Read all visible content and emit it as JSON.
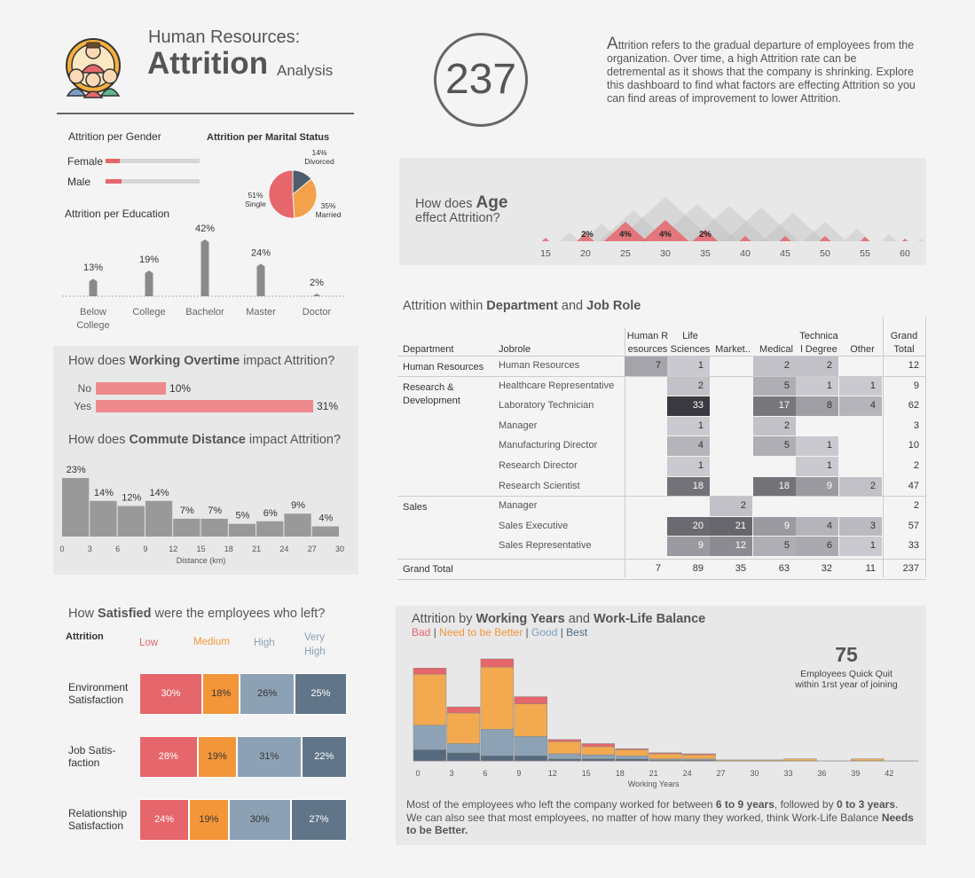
{
  "header": {
    "line1": "Human Resources:",
    "title": "Attrition",
    "analysis": "Analysis",
    "logo_icon": "employees-group-icon",
    "total": "237",
    "description_first_letter": "A",
    "description": "ttrition refers to the gradual departure of employees from the organization. Over time, a high Attrition rate can be detremental as it shows that the company is shrinking. Explore this dashboard to find what factors are effecting Attrition so you can find areas of improvement to lower Attrition."
  },
  "gender": {
    "title": "Attrition per Gender",
    "items": [
      {
        "label": "Female",
        "value": 0.15
      },
      {
        "label": "Male",
        "value": 0.17
      }
    ]
  },
  "marital": {
    "title": "Attrition per Marital Status",
    "slices": [
      {
        "label": "Divorced",
        "pct_label": "14%",
        "value": 14,
        "color": "#4e5d6c"
      },
      {
        "label": "Married",
        "pct_label": "35%",
        "value": 35,
        "color": "#f3a24b"
      },
      {
        "label": "Single",
        "pct_label": "51%",
        "value": 51,
        "color": "#e5666b"
      }
    ]
  },
  "education": {
    "title": "Attrition per Education",
    "bars": [
      {
        "label": "Below College",
        "line1": "Below",
        "line2": "College",
        "value": 13,
        "pct": "13%"
      },
      {
        "label": "College",
        "line1": "College",
        "line2": "",
        "value": 19,
        "pct": "19%"
      },
      {
        "label": "Bachelor",
        "line1": "Bachelor",
        "line2": "",
        "value": 42,
        "pct": "42%"
      },
      {
        "label": "Master",
        "line1": "Master",
        "line2": "",
        "value": 24,
        "pct": "24%"
      },
      {
        "label": "Doctor",
        "line1": "Doctor",
        "line2": "",
        "value": 2,
        "pct": "2%"
      }
    ]
  },
  "overtime": {
    "title_pre": "How does ",
    "title_bold": "Working Overtime",
    "title_post": " impact Attrition?",
    "items": [
      {
        "label": "No",
        "value": 10,
        "pct": "10%"
      },
      {
        "label": "Yes",
        "value": 31,
        "pct": "31%"
      }
    ]
  },
  "commute": {
    "title_pre": "How does ",
    "title_bold": "Commute Distance",
    "title_post": " impact Attrition?",
    "xlabel": "Distance (km)",
    "ticks": [
      "0",
      "3",
      "6",
      "9",
      "12",
      "15",
      "18",
      "21",
      "24",
      "27",
      "30"
    ],
    "bars": [
      23,
      14,
      12,
      14,
      7,
      7,
      5,
      6,
      9,
      4
    ],
    "labels": [
      "23%",
      "14%",
      "12%",
      "14%",
      "7%",
      "7%",
      "5%",
      "6%",
      "9%",
      "4%"
    ]
  },
  "satisfaction": {
    "title_pre": "How ",
    "title_bold": "Satisfied",
    "title_post": " were the employees who left?",
    "col_attrition": "Attrition",
    "levels": [
      {
        "label": "Low",
        "color": "#e5666b"
      },
      {
        "label": "Medium",
        "color": "#f3963a"
      },
      {
        "label": "High",
        "color": "#8da1b5"
      },
      {
        "label": "Very High",
        "line1": "Very",
        "line2": "High",
        "color": "#617589"
      }
    ],
    "rows": [
      {
        "line1": "Environment",
        "line2": "Satisfaction",
        "values": [
          30,
          18,
          26,
          25
        ],
        "labels": [
          "30%",
          "18%",
          "26%",
          "25%"
        ]
      },
      {
        "line1": "Job Satis-",
        "line2": "faction",
        "values": [
          28,
          19,
          31,
          22
        ],
        "labels": [
          "28%",
          "19%",
          "31%",
          "22%"
        ]
      },
      {
        "line1": "Relationship",
        "line2": "Satisfaction",
        "values": [
          24,
          19,
          30,
          27
        ],
        "labels": [
          "24%",
          "19%",
          "30%",
          "27%"
        ]
      }
    ]
  },
  "age": {
    "title_pre": "How does ",
    "title_bold": "Age",
    "title_line2": "effect Attrition?",
    "ticks": [
      "15",
      "20",
      "25",
      "30",
      "35",
      "40",
      "45",
      "50",
      "55",
      "60"
    ],
    "labels": [
      {
        "x": 20,
        "text": "2%"
      },
      {
        "x": 25,
        "text": "4%"
      },
      {
        "x": 30,
        "text": "4%"
      },
      {
        "x": 35,
        "text": "2%"
      }
    ]
  },
  "heatmap": {
    "title_pre": "Attrition within ",
    "title_bold1": "Department",
    "title_mid": " and ",
    "title_bold2": "Job Role",
    "header_dept": "Department",
    "header_role": "Jobrole",
    "columns": [
      {
        "line1": "Human R",
        "line2": "esources"
      },
      {
        "line1": "Life",
        "line2": "Sciences"
      },
      {
        "line1": "",
        "line2": "Market.."
      },
      {
        "line1": "",
        "line2": "Medical"
      },
      {
        "line1": "Technica",
        "line2": "l Degree"
      },
      {
        "line1": "",
        "line2": "Other"
      }
    ],
    "grand_total_col": {
      "line1": "Grand",
      "line2": "Total"
    },
    "departments": [
      {
        "line1": "Human Resources",
        "line2": "",
        "start": 0
      },
      {
        "line1": "Research &",
        "line2": "Development",
        "start": 1
      },
      {
        "line1": "Sales",
        "line2": "",
        "start": 7
      }
    ],
    "rows": [
      {
        "role": "Human Resources",
        "values": [
          7,
          1,
          null,
          2,
          2,
          null
        ],
        "total": "12"
      },
      {
        "role": "Healthcare Representative",
        "values": [
          null,
          2,
          null,
          5,
          1,
          1
        ],
        "total": "9"
      },
      {
        "role": "Laboratory Technician",
        "values": [
          null,
          33,
          null,
          17,
          8,
          4
        ],
        "total": "62"
      },
      {
        "role": "Manager",
        "values": [
          null,
          1,
          null,
          2,
          null,
          null
        ],
        "total": "3"
      },
      {
        "role": "Manufacturing Director",
        "values": [
          null,
          4,
          null,
          5,
          1,
          null
        ],
        "total": "10"
      },
      {
        "role": "Research Director",
        "values": [
          null,
          1,
          null,
          null,
          1,
          null
        ],
        "total": "2"
      },
      {
        "role": "Research Scientist",
        "values": [
          null,
          18,
          null,
          18,
          9,
          2
        ],
        "total": "47"
      },
      {
        "role": "Manager",
        "values": [
          null,
          null,
          2,
          null,
          null,
          null
        ],
        "total": "2"
      },
      {
        "role": "Sales Executive",
        "values": [
          null,
          20,
          21,
          9,
          4,
          3
        ],
        "total": "57"
      },
      {
        "role": "Sales Representative",
        "values": [
          null,
          9,
          12,
          5,
          6,
          1
        ],
        "total": "33"
      }
    ],
    "grand_total_label": "Grand Total",
    "grand_totals": [
      "7",
      "89",
      "35",
      "63",
      "32",
      "11",
      "237"
    ]
  },
  "years": {
    "title_pre": "Attrition by ",
    "title_bold1": "Working Years",
    "title_mid": " and ",
    "title_bold2": "Work-Life Balance",
    "legend": [
      {
        "label": "Bad",
        "color": "#e5666b"
      },
      {
        "label": "Need to be Better",
        "color": "#f3963a"
      },
      {
        "label": "Good",
        "color": "#7aa0c8"
      },
      {
        "label": "Best",
        "color": "#4e6a87"
      }
    ],
    "quick_quit_value": "75",
    "quick_quit_line1": "Employees Quick Quit",
    "quick_quit_line2": "within 1rst year of joining",
    "xlabel": "Working Years",
    "ticks": [
      "0",
      "3",
      "6",
      "9",
      "12",
      "15",
      "18",
      "21",
      "24",
      "27",
      "30",
      "33",
      "36",
      "39",
      "42"
    ],
    "bin_width": 3,
    "bins": [
      {
        "start": 0,
        "best": 11,
        "good": 24,
        "better": 50,
        "bad": 6
      },
      {
        "start": 3,
        "best": 8,
        "good": 9,
        "better": 30,
        "bad": 6
      },
      {
        "start": 6,
        "best": 5,
        "good": 26,
        "better": 61,
        "bad": 8
      },
      {
        "start": 9,
        "best": 5,
        "good": 19,
        "better": 32,
        "bad": 7
      },
      {
        "start": 12,
        "best": 2,
        "good": 5,
        "better": 12,
        "bad": 2
      },
      {
        "start": 15,
        "best": 2,
        "good": 4,
        "better": 8,
        "bad": 3
      },
      {
        "start": 18,
        "best": 2,
        "good": 3,
        "better": 6,
        "bad": 1
      },
      {
        "start": 21,
        "best": 1,
        "good": 1,
        "better": 5,
        "bad": 1
      },
      {
        "start": 24,
        "best": 1,
        "good": 1,
        "better": 4,
        "bad": 1
      },
      {
        "start": 27,
        "best": 0,
        "good": 0,
        "better": 1,
        "bad": 0
      },
      {
        "start": 30,
        "best": 0,
        "good": 0,
        "better": 1,
        "bad": 0
      },
      {
        "start": 33,
        "best": 0,
        "good": 0,
        "better": 2,
        "bad": 0
      },
      {
        "start": 36,
        "best": 0,
        "good": 0,
        "better": 0,
        "bad": 0
      },
      {
        "start": 39,
        "best": 0,
        "good": 0,
        "better": 2,
        "bad": 0
      }
    ],
    "note_a": "Most of the employees who left the company worked for between ",
    "note_b": "6 to 9 years",
    "note_c": ", followed by ",
    "note_d": "0 to 3 years",
    "note_e": ".",
    "note_f": "We can also see that most employees, no matter of how many they worked, think Work-Life Balance ",
    "note_g": "Needs to be Better."
  }
}
